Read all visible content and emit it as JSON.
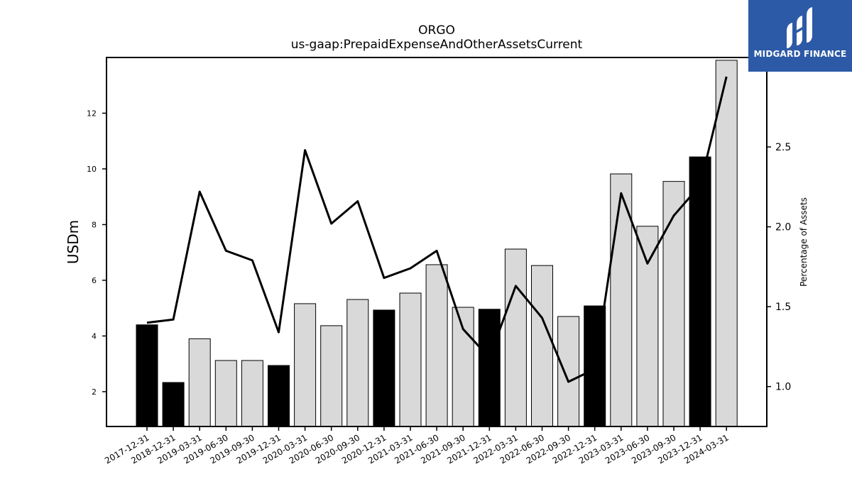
{
  "chart_data": {
    "type": "bar",
    "title": "ORGO",
    "subtitle": "us-gaap:PrepaidExpenseAndOtherAssetsCurrent",
    "ylabel_left": "USDm",
    "ylabel_right": "Percentage of Assets",
    "categories": [
      "2017-12-31",
      "2018-12-31",
      "2019-03-31",
      "2019-06-30",
      "2019-09-30",
      "2019-12-31",
      "2020-03-31",
      "2020-06-30",
      "2020-09-30",
      "2020-12-31",
      "2021-03-31",
      "2021-06-30",
      "2021-09-30",
      "2021-12-31",
      "2022-03-31",
      "2022-06-30",
      "2022-09-30",
      "2022-12-31",
      "2023-03-31",
      "2023-06-30",
      "2023-09-30",
      "2023-12-31",
      "2024-03-31"
    ],
    "series": [
      {
        "values": [
          4.4,
          2.33,
          3.9,
          3.12,
          3.12,
          2.94,
          5.16,
          4.37,
          5.31,
          4.93,
          5.54,
          6.56,
          5.03,
          4.96,
          7.12,
          6.53,
          4.7,
          5.08,
          9.82,
          7.94,
          9.55,
          10.43,
          13.9
        ],
        "fills": [
          "#000000",
          "#000000",
          "#d9d9d9",
          "#d9d9d9",
          "#d9d9d9",
          "#000000",
          "#d9d9d9",
          "#d9d9d9",
          "#d9d9d9",
          "#000000",
          "#d9d9d9",
          "#d9d9d9",
          "#d9d9d9",
          "#000000",
          "#d9d9d9",
          "#d9d9d9",
          "#d9d9d9",
          "#000000",
          "#d9d9d9",
          "#d9d9d9",
          "#d9d9d9",
          "#000000",
          "#d9d9d9"
        ]
      },
      {
        "values": [
          1.4,
          1.42,
          2.22,
          1.85,
          1.79,
          1.34,
          2.48,
          2.02,
          2.16,
          1.68,
          1.74,
          1.85,
          1.36,
          1.18,
          1.63,
          1.43,
          1.03,
          1.11,
          2.21,
          1.77,
          2.07,
          2.26,
          2.94
        ]
      }
    ],
    "yticks_left": [
      2,
      4,
      6,
      8,
      10,
      12
    ],
    "yticks_right": [
      1.0,
      1.5,
      2.0,
      2.5
    ],
    "ylim_left": [
      0.75,
      14.0
    ],
    "ylim_right": [
      0.75,
      3.06
    ],
    "grid": false
  },
  "brand": {
    "name": "MIDGARD FINANCE",
    "color": "#2c5aa6"
  }
}
